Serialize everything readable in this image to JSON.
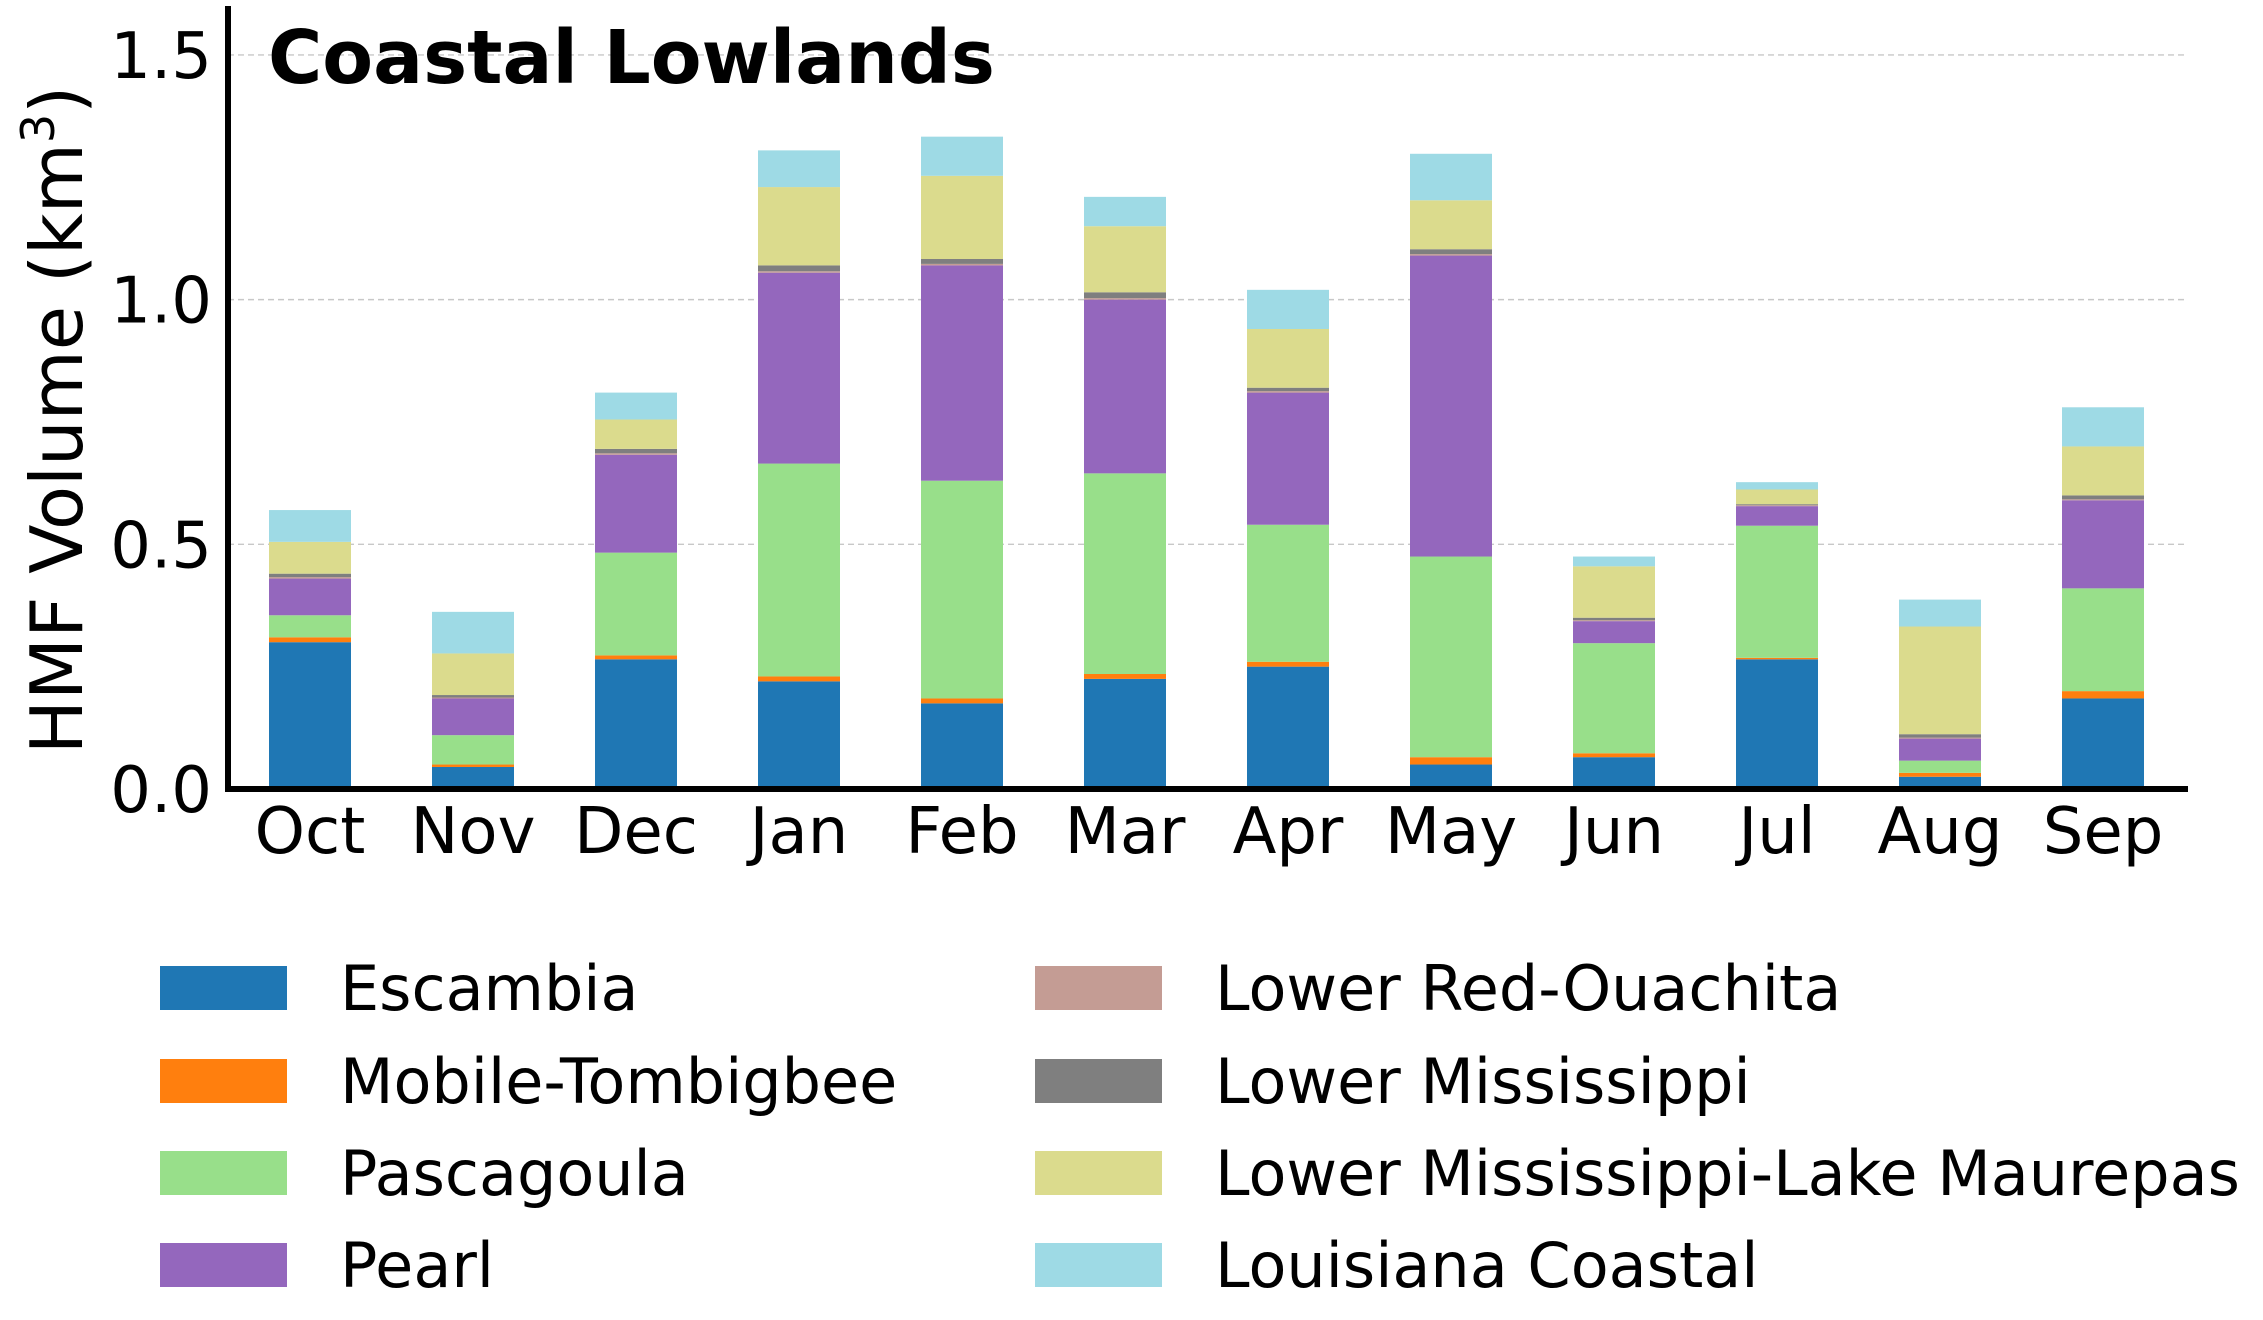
{
  "chart_data": {
    "type": "bar",
    "stacked": true,
    "title": "Coastal Lowlands",
    "ylabel": "HMF Volume (km³)",
    "ylabel_main": "HMF Volume (km",
    "ylabel_sup": "3",
    "ylabel_end": ")",
    "xlabel": "",
    "ylim": [
      0,
      1.6
    ],
    "yticks": [
      0.0,
      0.5,
      1.0,
      1.5
    ],
    "ytick_labels": [
      "0.0",
      "0.5",
      "1.0",
      "1.5"
    ],
    "grid": "horizontal dashed",
    "legend_placement": "below, two columns",
    "categories": [
      "Oct",
      "Nov",
      "Dec",
      "Jan",
      "Feb",
      "Mar",
      "Apr",
      "May",
      "Jun",
      "Jul",
      "Aug",
      "Sep"
    ],
    "series": [
      {
        "name": "Escambia",
        "color": "#1f77b4",
        "values": [
          0.3,
          0.045,
          0.265,
          0.22,
          0.175,
          0.225,
          0.25,
          0.05,
          0.065,
          0.265,
          0.025,
          0.185
        ]
      },
      {
        "name": "Mobile-Tombigbee",
        "color": "#ff7f0e",
        "values": [
          0.01,
          0.005,
          0.008,
          0.01,
          0.01,
          0.01,
          0.01,
          0.015,
          0.008,
          0.003,
          0.008,
          0.015
        ]
      },
      {
        "name": "Pascagoula",
        "color": "#98df8a",
        "values": [
          0.045,
          0.06,
          0.21,
          0.435,
          0.445,
          0.41,
          0.28,
          0.41,
          0.225,
          0.27,
          0.025,
          0.21
        ]
      },
      {
        "name": "Pearl",
        "color": "#9467bd",
        "values": [
          0.075,
          0.075,
          0.2,
          0.39,
          0.44,
          0.355,
          0.27,
          0.615,
          0.045,
          0.04,
          0.045,
          0.18
        ]
      },
      {
        "name": "Lower Red-Ouachita",
        "color": "#c49c94",
        "values": [
          0.003,
          0.002,
          0.003,
          0.003,
          0.003,
          0.003,
          0.003,
          0.003,
          0.002,
          0.002,
          0.002,
          0.002
        ]
      },
      {
        "name": "Lower Mississippi",
        "color": "#7f7f7f",
        "values": [
          0.007,
          0.005,
          0.009,
          0.012,
          0.01,
          0.012,
          0.007,
          0.01,
          0.005,
          0.002,
          0.007,
          0.008
        ]
      },
      {
        "name": "Lower Mississippi-Lake Maurepas",
        "color": "#dbdb8d",
        "values": [
          0.065,
          0.085,
          0.06,
          0.16,
          0.17,
          0.135,
          0.12,
          0.1,
          0.105,
          0.03,
          0.22,
          0.1
        ]
      },
      {
        "name": "Louisiana Coastal",
        "color": "#9edae5",
        "values": [
          0.065,
          0.085,
          0.055,
          0.075,
          0.08,
          0.06,
          0.08,
          0.095,
          0.02,
          0.015,
          0.055,
          0.08
        ]
      }
    ]
  }
}
